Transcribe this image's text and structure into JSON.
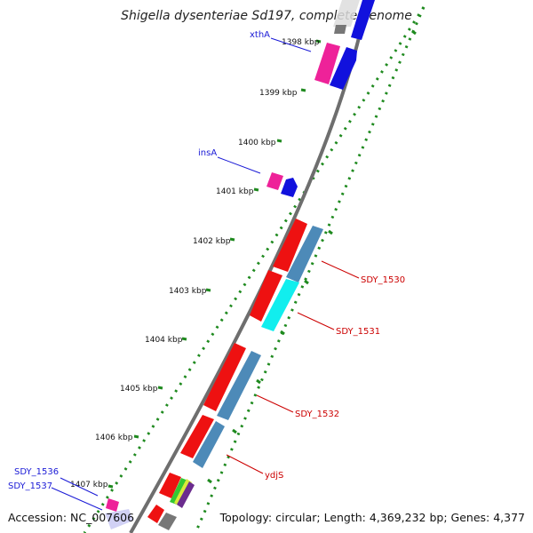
{
  "title": "Shigella dysenteriae Sd197, complete genome",
  "accession": "Accession: NC_007606",
  "summary": "Topology: circular; Length: 4,369,232 bp; Genes: 4,377",
  "colors": {
    "backbone": "#6e6e6e",
    "dots": "#1f8a1f",
    "label_forward": "#1a1ad6",
    "label_reverse": "#cc0000",
    "cds_red": "#ee1111",
    "cds_steelblue": "#4d8ab8",
    "cds_cyan": "#11eeee",
    "cds_pink": "#ee2299",
    "cds_blue": "#1111dd",
    "cds_gray": "#777777"
  },
  "ticks": [
    {
      "label": "1398 kbp"
    },
    {
      "label": "1399 kbp"
    },
    {
      "label": "1400 kbp"
    },
    {
      "label": "1401 kbp"
    },
    {
      "label": "1402 kbp"
    },
    {
      "label": "1403 kbp"
    },
    {
      "label": "1404 kbp"
    },
    {
      "label": "1405 kbp"
    },
    {
      "label": "1406 kbp"
    },
    {
      "label": "1407 kbp"
    }
  ],
  "gene_labels": [
    {
      "text": "xthA",
      "strand": "forward"
    },
    {
      "text": "insA",
      "strand": "forward"
    },
    {
      "text": "SDY_1530",
      "strand": "reverse"
    },
    {
      "text": "SDY_1531",
      "strand": "reverse"
    },
    {
      "text": "SDY_1532",
      "strand": "reverse"
    },
    {
      "text": "ydjS",
      "strand": "reverse"
    },
    {
      "text": "SDY_1536",
      "strand": "forward"
    },
    {
      "text": "SDY_1537",
      "strand": "forward"
    }
  ]
}
